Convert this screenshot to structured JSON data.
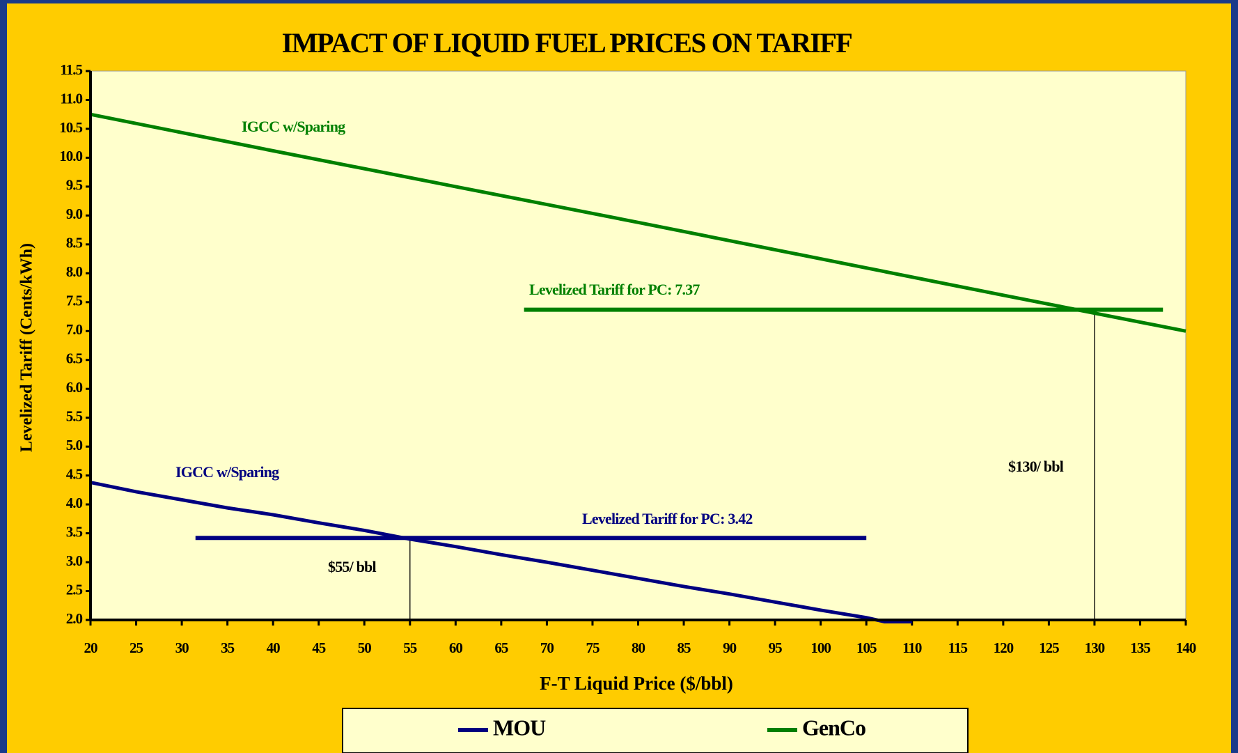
{
  "chart_data": {
    "type": "line",
    "title": "IMPACT OF LIQUID FUEL PRICES ON TARIFF",
    "x_label": "F-T Liquid Price ($/bbl)",
    "y_label": "Levelized Tariff (Cents/kWh)",
    "xlim": [
      20,
      140
    ],
    "ylim": [
      2,
      11.5
    ],
    "xticks": [
      20,
      25,
      30,
      35,
      40,
      45,
      50,
      55,
      60,
      65,
      70,
      75,
      80,
      85,
      90,
      95,
      100,
      105,
      110,
      115,
      120,
      125,
      130,
      135,
      140
    ],
    "yticks": [
      {
        "value": 2,
        "label": "2.0"
      },
      2.5,
      {
        "value": 3,
        "label": "3.0"
      },
      3.5,
      {
        "value": 4,
        "label": "4.0"
      },
      4.5,
      {
        "value": 5,
        "label": "5.0"
      },
      5.5,
      {
        "value": 6,
        "label": "6.0"
      },
      6.5,
      {
        "value": 7,
        "label": "7.0"
      },
      7.5,
      {
        "value": 8,
        "label": "8.0"
      },
      8.5,
      {
        "value": 9,
        "label": "9.0"
      },
      9.5,
      {
        "value": 10,
        "label": "10.0"
      },
      10.5,
      {
        "value": 11,
        "label": "11.0"
      },
      11.5
    ],
    "grid": false,
    "legend": "bottom",
    "series": [
      {
        "name": "MOU",
        "color": "#000080",
        "x": [
          20,
          25,
          30,
          35,
          40,
          45,
          50,
          55,
          60,
          65,
          70,
          75,
          80,
          85,
          90,
          95,
          100,
          105,
          107,
          110
        ],
        "values": [
          4.38,
          4.22,
          4.08,
          3.94,
          3.82,
          3.68,
          3.55,
          3.4,
          3.27,
          3.13,
          3.0,
          2.86,
          2.72,
          2.58,
          2.45,
          2.31,
          2.17,
          2.04,
          1.97,
          1.97
        ]
      },
      {
        "name": "GenCo",
        "color": "#008000",
        "x": [
          20,
          40,
          60,
          80,
          100,
          120,
          140
        ],
        "values": [
          10.75,
          10.12,
          9.5,
          8.88,
          8.25,
          7.62,
          7.0
        ]
      }
    ],
    "reference_lines": [
      {
        "value": 3.42,
        "x": [
          31.5,
          105
        ],
        "color": "#000080"
      },
      {
        "value": 7.37,
        "x": [
          67.5,
          137.5
        ],
        "color": "#008000"
      }
    ],
    "vertical_lines": [
      {
        "x": 55,
        "y": 3.42,
        "color": "#000000"
      },
      {
        "x": 130,
        "y": 7.37,
        "color": "#000000"
      }
    ],
    "annotations": [
      {
        "text": "IGCC w/Sparing",
        "color": "#008000"
      },
      {
        "text": "IGCC w/Sparing",
        "color": "#000080"
      },
      {
        "text": "Levelized Tariff for PC: 7.37",
        "color": "#008000"
      },
      {
        "text": "Levelized Tariff for PC: 3.42",
        "color": "#000080"
      },
      {
        "text": "$55/ bbl",
        "color": "#000000"
      },
      {
        "text": "$130/ bbl",
        "color": "#000000"
      }
    ]
  }
}
